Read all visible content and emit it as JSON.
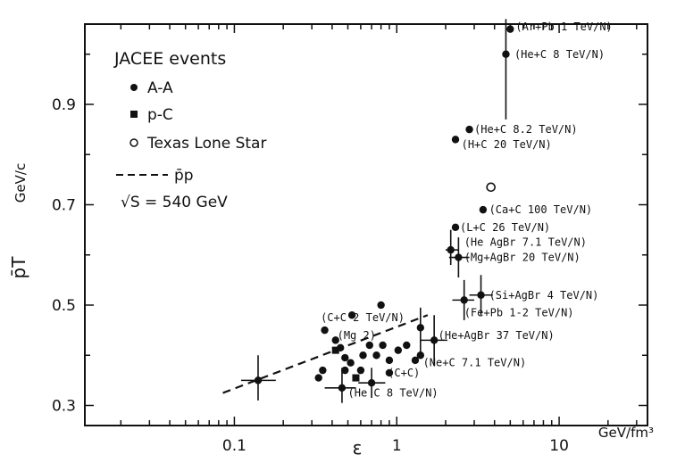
{
  "chart_data": {
    "type": "scatter",
    "xlabel": "ε",
    "xunit": "GeV/fm³",
    "ylabel": "p̄T",
    "yunit": "GeV/c",
    "xscale": "log",
    "xlim": [
      0.012,
      35
    ],
    "ylim": [
      0.26,
      1.06
    ],
    "xticks": [
      0.1,
      1,
      10
    ],
    "xtick_labels": [
      "0.1",
      "1",
      "10"
    ],
    "yticks": [
      0.3,
      0.5,
      0.7,
      0.9
    ],
    "ytick_labels": [
      "0.3",
      "0.5",
      "0.7",
      "0.9"
    ],
    "grid": false,
    "legend": {
      "placement": "top-left",
      "title": "JACEE events",
      "entries": [
        {
          "marker": "filled-circle",
          "label": "A-A"
        },
        {
          "marker": "filled-square",
          "label": "p-C"
        },
        {
          "marker": "open-circle",
          "label": "Texas Lone Star"
        },
        {
          "marker": "dashed-line",
          "label": "p̄p"
        }
      ],
      "note": "√S = 540 GeV"
    },
    "series": [
      {
        "name": "A-A",
        "marker": "filled-circle",
        "points": [
          {
            "x": 4.7,
            "y": 1.0,
            "xerr": [
              0.0,
              0.0
            ],
            "yerr": [
              0.13,
              0.07
            ]
          },
          {
            "x": 5.0,
            "y": 1.05
          },
          {
            "x": 2.8,
            "y": 0.85
          },
          {
            "x": 2.3,
            "y": 0.83
          },
          {
            "x": 3.4,
            "y": 0.69
          },
          {
            "x": 2.3,
            "y": 0.655
          },
          {
            "x": 2.15,
            "y": 0.61,
            "xerr": [
              0.15,
              0.25
            ],
            "yerr": [
              0.03,
              0.04
            ]
          },
          {
            "x": 2.4,
            "y": 0.595,
            "xerr": [
              0.3,
              0.4
            ],
            "yerr": [
              0.04,
              0.04
            ]
          },
          {
            "x": 3.3,
            "y": 0.52,
            "xerr": [
              0.5,
              0.6
            ],
            "yerr": [
              0.04,
              0.04
            ]
          },
          {
            "x": 2.6,
            "y": 0.51,
            "xerr": [
              0.4,
              0.4
            ],
            "yerr": [
              0.04,
              0.04
            ]
          },
          {
            "x": 1.7,
            "y": 0.43,
            "xerr": [
              0.3,
              0.35
            ],
            "yerr": [
              0.05,
              0.05
            ]
          },
          {
            "x": 1.4,
            "y": 0.455,
            "xerr": [
              0.0,
              0.0
            ],
            "yerr": [
              0.06,
              0.04
            ]
          },
          {
            "x": 0.14,
            "y": 0.35,
            "xerr": [
              0.03,
              0.04
            ],
            "yerr": [
              0.04,
              0.05
            ]
          },
          {
            "x": 0.46,
            "y": 0.335,
            "xerr": [
              0.1,
              0.1
            ],
            "yerr": [
              0.03,
              0.04
            ]
          },
          {
            "x": 0.7,
            "y": 0.345,
            "xerr": [
              0.12,
              0.15
            ],
            "yerr": [
              0.03,
              0.03
            ]
          },
          {
            "x": 0.36,
            "y": 0.45
          },
          {
            "x": 0.53,
            "y": 0.48
          },
          {
            "x": 0.8,
            "y": 0.5
          },
          {
            "x": 0.42,
            "y": 0.43
          },
          {
            "x": 0.45,
            "y": 0.415
          },
          {
            "x": 0.48,
            "y": 0.395
          },
          {
            "x": 0.52,
            "y": 0.385
          },
          {
            "x": 0.62,
            "y": 0.4
          },
          {
            "x": 0.68,
            "y": 0.42
          },
          {
            "x": 0.75,
            "y": 0.4
          },
          {
            "x": 0.82,
            "y": 0.42
          },
          {
            "x": 0.9,
            "y": 0.39
          },
          {
            "x": 1.02,
            "y": 0.41
          },
          {
            "x": 1.15,
            "y": 0.42
          },
          {
            "x": 1.3,
            "y": 0.39
          },
          {
            "x": 1.4,
            "y": 0.4
          },
          {
            "x": 0.35,
            "y": 0.37
          },
          {
            "x": 0.33,
            "y": 0.355
          },
          {
            "x": 0.48,
            "y": 0.37
          },
          {
            "x": 0.6,
            "y": 0.37
          },
          {
            "x": 0.9,
            "y": 0.365
          }
        ]
      },
      {
        "name": "p-C",
        "marker": "filled-square",
        "points": [
          {
            "x": 0.42,
            "y": 0.41
          },
          {
            "x": 0.56,
            "y": 0.355
          }
        ]
      },
      {
        "name": "Texas Lone Star",
        "marker": "open-circle",
        "points": [
          {
            "x": 3.8,
            "y": 0.735
          }
        ]
      },
      {
        "name": "p̄p",
        "type": "dashed-line",
        "points": [
          {
            "x": 0.085,
            "y": 0.325
          },
          {
            "x": 1.55,
            "y": 0.48
          }
        ]
      }
    ],
    "annotations": [
      {
        "text": "(Ar+Pb 1 TeV/N)",
        "x": 5.4,
        "y": 1.055
      },
      {
        "text": "(He+C 8 TeV/N)",
        "x": 5.3,
        "y": 1.0
      },
      {
        "text": "(He+C 8.2 TeV/N)",
        "x": 3.0,
        "y": 0.85
      },
      {
        "text": "(H+C 20 TeV/N)",
        "x": 2.5,
        "y": 0.82
      },
      {
        "text": "(Ca+C 100 TeV/N)",
        "x": 3.7,
        "y": 0.69
      },
      {
        "text": "(L+C 26 TeV/N)",
        "x": 2.45,
        "y": 0.655
      },
      {
        "text": "(He AgBr 7.1 TeV/N)",
        "x": 2.6,
        "y": 0.625
      },
      {
        "text": "(Mg+AgBr 20 TeV/N)",
        "x": 2.6,
        "y": 0.595
      },
      {
        "text": "(Si+AgBr 4 TeV/N)",
        "x": 3.7,
        "y": 0.52
      },
      {
        "text": "(Fe+Pb 1-2 TeV/N)",
        "x": 2.6,
        "y": 0.485
      },
      {
        "text": "(C+C 2 TeV/N)",
        "x": 0.34,
        "y": 0.475
      },
      {
        "text": "(Mg 2)",
        "x": 0.43,
        "y": 0.44
      },
      {
        "text": "(He+AgBr 37 TeV/N)",
        "x": 1.8,
        "y": 0.44
      },
      {
        "text": "(Ne+C 7.1 TeV/N)",
        "x": 1.45,
        "y": 0.385
      },
      {
        "text": "(C+C)",
        "x": 0.88,
        "y": 0.365
      },
      {
        "text": "(He C 8 TeV/N)",
        "x": 0.5,
        "y": 0.325
      }
    ]
  }
}
